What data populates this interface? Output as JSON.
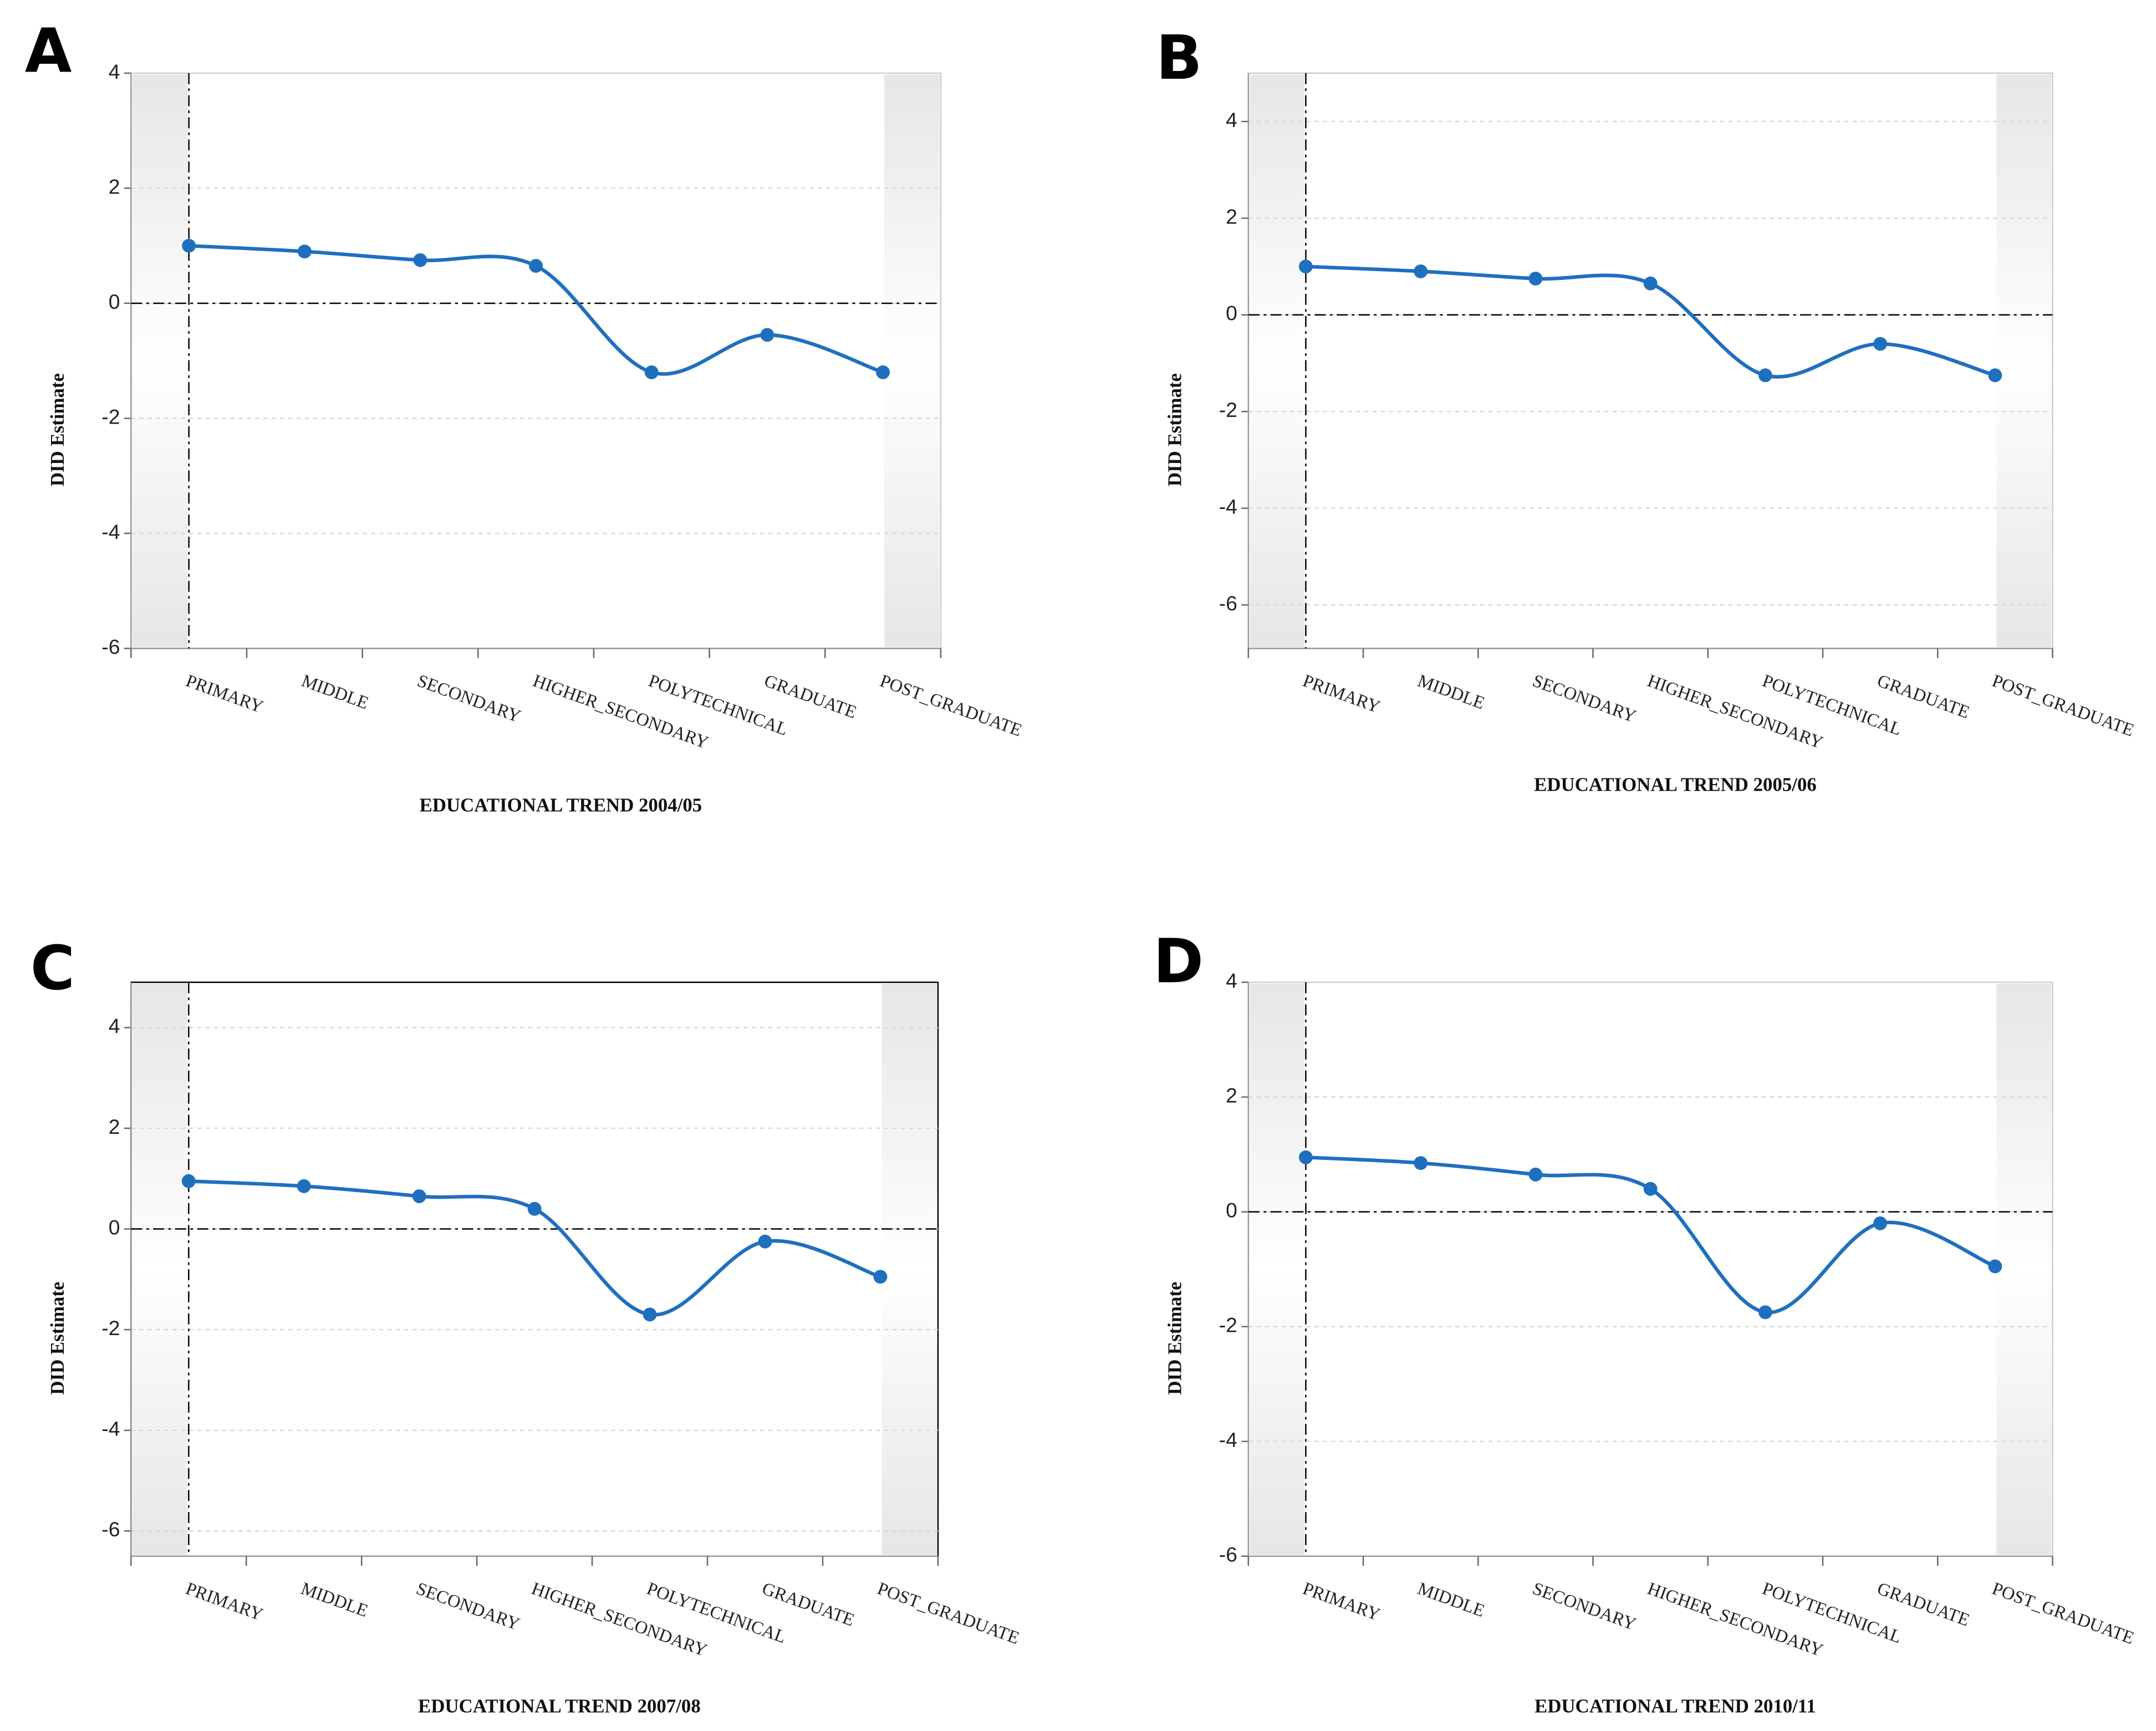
{
  "chart_data": [
    {
      "type": "line",
      "panel": "A",
      "x_label": "EDUCATIONAL TREND 2004/05",
      "y_label": "DID Estimate",
      "categories": [
        "PRIMARY",
        "MIDDLE",
        "SECONDARY",
        "HIGHER_SECONDARY",
        "POLYTECHNICAL",
        "GRADUATE",
        "POST_GRADUATE"
      ],
      "values": [
        1.0,
        0.9,
        0.75,
        0.65,
        -1.2,
        -0.55,
        -1.2
      ],
      "color": "#1f6fbf",
      "ylim": [
        -6,
        4
      ],
      "yticks": [
        -6,
        -4,
        -2,
        0,
        2,
        4
      ],
      "grid": true
    },
    {
      "type": "line",
      "panel": "B",
      "x_label": "EDUCATIONAL TREND 2005/06",
      "y_label": "DID Estimate",
      "categories": [
        "PRIMARY",
        "MIDDLE",
        "SECONDARY",
        "HIGHER_SECONDARY",
        "POLYTECHNICAL",
        "GRADUATE",
        "POST_GRADUATE"
      ],
      "values": [
        1.0,
        0.9,
        0.75,
        0.65,
        -1.25,
        -0.6,
        -1.25
      ],
      "color": "#1f6fbf",
      "ylim": [
        -6.9,
        5
      ],
      "yticks": [
        -6,
        -4,
        -2,
        0,
        2,
        4
      ],
      "grid": true
    },
    {
      "type": "line",
      "panel": "C",
      "x_label": "EDUCATIONAL TREND 2007/08",
      "y_label": "DID Estimate",
      "categories": [
        "PRIMARY",
        "MIDDLE",
        "SECONDARY",
        "HIGHER_SECONDARY",
        "POLYTECHNICAL",
        "GRADUATE",
        "POST_GRADUATE"
      ],
      "values": [
        0.95,
        0.85,
        0.65,
        0.4,
        -1.7,
        -0.25,
        -0.95
      ],
      "color": "#1f6fbf",
      "ylim": [
        -6.5,
        4.9
      ],
      "yticks": [
        -6,
        -4,
        -2,
        0,
        2,
        4
      ],
      "grid": true
    },
    {
      "type": "line",
      "panel": "D",
      "x_label": "EDUCATIONAL TREND 2010/11",
      "y_label": "DID Estimate",
      "categories": [
        "PRIMARY",
        "MIDDLE",
        "SECONDARY",
        "HIGHER_SECONDARY",
        "POLYTECHNICAL",
        "GRADUATE",
        "POST_GRADUATE"
      ],
      "values": [
        0.95,
        0.85,
        0.65,
        0.4,
        -1.75,
        -0.2,
        -0.95
      ],
      "color": "#1f6fbf",
      "ylim": [
        -6,
        4
      ],
      "yticks": [
        -6,
        -4,
        -2,
        0,
        2,
        4
      ],
      "grid": true
    }
  ]
}
